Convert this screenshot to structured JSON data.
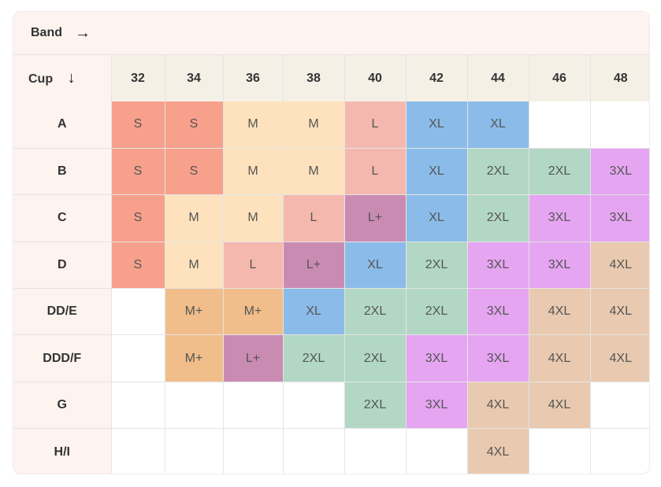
{
  "header": {
    "band_label": "Band",
    "band_arrow": "→",
    "cup_label": "Cup",
    "cup_arrow": "↓"
  },
  "bands": [
    "32",
    "34",
    "36",
    "38",
    "40",
    "42",
    "44",
    "46",
    "48"
  ],
  "colors": {
    "S": "#f7a08c",
    "M": "#fde2bd",
    "M+": "#f1be8b",
    "L": "#f5b8ae",
    "L+": "#ca8bb3",
    "XL": "#8bbce9",
    "2XL": "#b2d8c5",
    "3XL": "#e5a5f1",
    "4XL": "#e9cab0"
  },
  "rows": [
    {
      "cup": "A",
      "sizes": [
        "S",
        "S",
        "M",
        "M",
        "L",
        "XL",
        "XL",
        "",
        ""
      ]
    },
    {
      "cup": "B",
      "sizes": [
        "S",
        "S",
        "M",
        "M",
        "L",
        "XL",
        "2XL",
        "2XL",
        "3XL"
      ]
    },
    {
      "cup": "C",
      "sizes": [
        "S",
        "M",
        "M",
        "L",
        "L+",
        "XL",
        "2XL",
        "3XL",
        "3XL"
      ]
    },
    {
      "cup": "D",
      "sizes": [
        "S",
        "M",
        "L",
        "L+",
        "XL",
        "2XL",
        "3XL",
        "3XL",
        "4XL"
      ]
    },
    {
      "cup": "DD/E",
      "sizes": [
        "",
        "M+",
        "M+",
        "XL",
        "2XL",
        "2XL",
        "3XL",
        "4XL",
        "4XL"
      ]
    },
    {
      "cup": "DDD/F",
      "sizes": [
        "",
        "M+",
        "L+",
        "2XL",
        "2XL",
        "3XL",
        "3XL",
        "4XL",
        "4XL"
      ]
    },
    {
      "cup": "G",
      "sizes": [
        "",
        "",
        "",
        "",
        "2XL",
        "3XL",
        "4XL",
        "4XL",
        ""
      ]
    },
    {
      "cup": "H/I",
      "sizes": [
        "",
        "",
        "",
        "",
        "",
        "",
        "4XL",
        "",
        ""
      ]
    }
  ]
}
